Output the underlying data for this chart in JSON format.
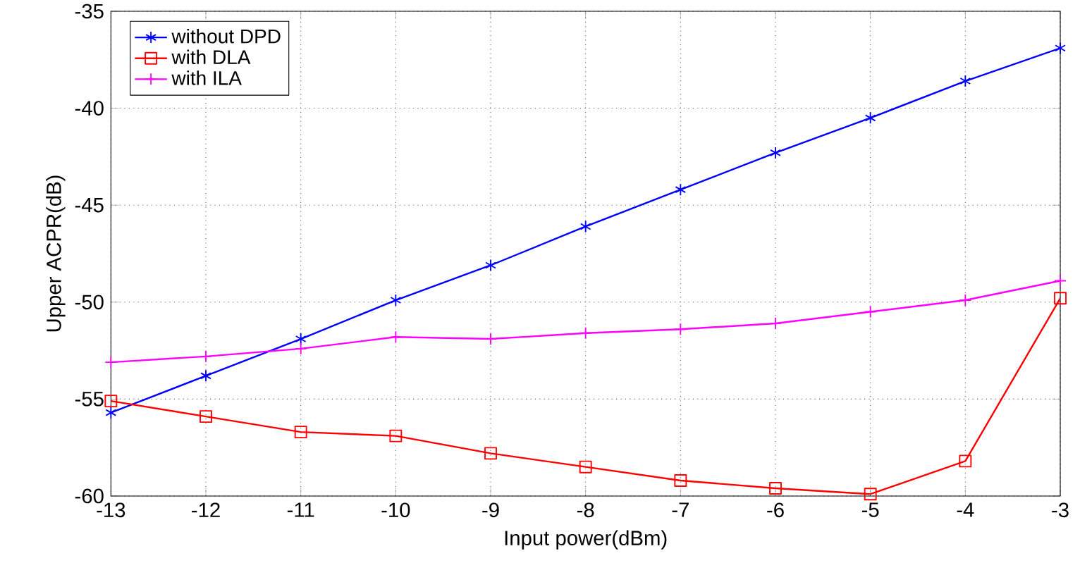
{
  "chart_data": {
    "type": "line",
    "xlabel": "Input power(dBm)",
    "ylabel": "Upper ACPR(dB)",
    "x": [
      -13,
      -12,
      -11,
      -10,
      -9,
      -8,
      -7,
      -6,
      -5,
      -4,
      -3
    ],
    "series": [
      {
        "name": "without DPD",
        "color": "#0000ff",
        "marker": "cross",
        "values": [
          -55.7,
          -53.8,
          -51.9,
          -49.9,
          -48.1,
          -46.1,
          -44.2,
          -42.3,
          -40.5,
          -38.6,
          -36.9
        ]
      },
      {
        "name": "with DLA",
        "color": "#ff0000",
        "marker": "square",
        "values": [
          -55.1,
          -55.9,
          -56.7,
          -56.9,
          -57.8,
          -58.5,
          -59.2,
          -59.6,
          -59.9,
          -58.2,
          -49.8
        ]
      },
      {
        "name": "with ILA",
        "color": "#ff00ff",
        "marker": "cross",
        "values": [
          -53.1,
          -52.8,
          -52.4,
          -51.8,
          -51.9,
          -51.6,
          -51.4,
          -51.1,
          -50.5,
          -49.9,
          -48.9
        ]
      }
    ],
    "xlim": [
      -13,
      -3
    ],
    "ylim": [
      -60,
      -35
    ],
    "xticks": [
      -13,
      -12,
      -11,
      -10,
      -9,
      -8,
      -7,
      -6,
      -5,
      -4,
      -3
    ],
    "yticks": [
      -60,
      -55,
      -50,
      -45,
      -40,
      -35
    ],
    "grid": true,
    "legend": "top left",
    "line_style": "solid"
  }
}
